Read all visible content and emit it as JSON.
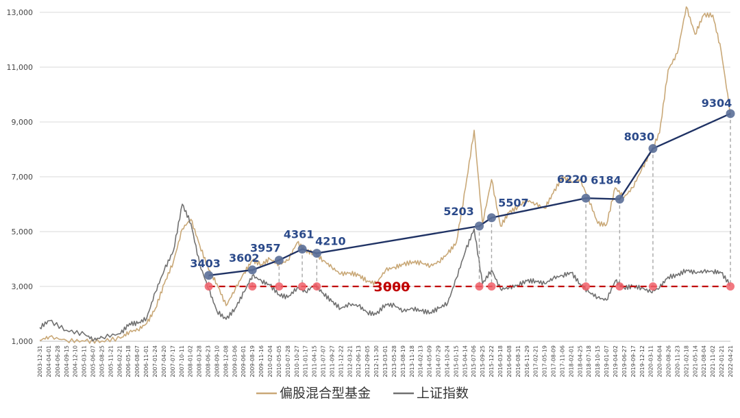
{
  "chart_data": {
    "type": "line",
    "title": "",
    "xlabel": "",
    "ylabel": "",
    "ylim": [
      1000,
      13200
    ],
    "xlim": [
      "2003-12-31",
      "2022-04-21"
    ],
    "y_ticks": [
      1000,
      3000,
      5000,
      7000,
      9000,
      11000,
      13000
    ],
    "y_tick_labels": [
      "1,000",
      "3,000",
      "5,000",
      "7,000",
      "9,000",
      "11,000",
      "13,000"
    ],
    "x_tick_labels": [
      "2003-12-31",
      "2004-04-01",
      "2004-06-28",
      "2004-09-15",
      "2004-12-10",
      "2005-03-11",
      "2005-06-07",
      "2005-08-25",
      "2005-11-21",
      "2006-02-21",
      "2006-05-18",
      "2006-08-07",
      "2006-11-01",
      "2007-01-24",
      "2007-04-20",
      "2007-07-17",
      "2007-10-11",
      "2008-01-02",
      "2008-03-28",
      "2008-06-23",
      "2008-09-10",
      "2008-12-08",
      "2009-03-06",
      "2009-06-01",
      "2009-08-19",
      "2009-11-16",
      "2010-02-04",
      "2010-05-05",
      "2010-07-28",
      "2010-10-27",
      "2011-01-17",
      "2011-04-15",
      "2011-07-07",
      "2011-09-27",
      "2011-12-22",
      "2012-03-21",
      "2012-06-13",
      "2012-09-05",
      "2012-11-30",
      "2013-03-01",
      "2013-05-28",
      "2013-08-19",
      "2013-11-18",
      "2014-02-13",
      "2014-05-09",
      "2014-07-29",
      "2014-10-24",
      "2015-01-15",
      "2015-04-14",
      "2015-07-06",
      "2015-09-25",
      "2015-12-22",
      "2016-03-18",
      "2016-06-08",
      "2016-08-31",
      "2016-11-29",
      "2017-02-21",
      "2017-05-19",
      "2017-08-09",
      "2017-11-06",
      "2018-02-01",
      "2018-04-25",
      "2018-07-18",
      "2018-10-15",
      "2019-01-07",
      "2019-04-02",
      "2019-06-27",
      "2019-09-17",
      "2019-12-12",
      "2020-03-11",
      "2020-06-04",
      "2020-08-26",
      "2020-11-23",
      "2021-02-18",
      "2021-05-14",
      "2021-08-04",
      "2021-11-02",
      "2022-01-21",
      "2022-04-21"
    ],
    "grid": "horizontal",
    "legend_position": "bottom-center",
    "series": [
      {
        "name": "偏股混合型基金",
        "color": "#c9a877",
        "points": [
          [
            "2003-12-31",
            1040
          ],
          [
            "2004-04-01",
            1160
          ],
          [
            "2004-09-15",
            1030
          ],
          [
            "2005-03-11",
            1000
          ],
          [
            "2005-08-25",
            1010
          ],
          [
            "2006-02-21",
            1110
          ],
          [
            "2006-05-18",
            1350
          ],
          [
            "2006-08-07",
            1420
          ],
          [
            "2006-11-01",
            1650
          ],
          [
            "2007-01-24",
            2200
          ],
          [
            "2007-04-20",
            3100
          ],
          [
            "2007-07-17",
            3900
          ],
          [
            "2007-10-11",
            5100
          ],
          [
            "2008-01-02",
            5450
          ],
          [
            "2008-03-28",
            4500
          ],
          [
            "2008-06-23",
            3600
          ],
          [
            "2008-09-10",
            3100
          ],
          [
            "2008-12-08",
            2300
          ],
          [
            "2009-03-06",
            2900
          ],
          [
            "2009-06-01",
            3500
          ],
          [
            "2009-08-19",
            3950
          ],
          [
            "2009-11-16",
            3800
          ],
          [
            "2010-02-04",
            4000
          ],
          [
            "2010-05-05",
            3800
          ],
          [
            "2010-07-28",
            3950
          ],
          [
            "2010-10-27",
            4600
          ],
          [
            "2011-01-17",
            4300
          ],
          [
            "2011-04-15",
            4200
          ],
          [
            "2011-07-07",
            3950
          ],
          [
            "2011-09-27",
            3700
          ],
          [
            "2011-12-22",
            3450
          ],
          [
            "2012-03-21",
            3500
          ],
          [
            "2012-06-13",
            3400
          ],
          [
            "2012-09-05",
            3200
          ],
          [
            "2012-11-30",
            3100
          ],
          [
            "2013-03-01",
            3600
          ],
          [
            "2013-05-28",
            3700
          ],
          [
            "2013-08-19",
            3800
          ],
          [
            "2013-11-18",
            3900
          ],
          [
            "2014-02-13",
            3850
          ],
          [
            "2014-05-09",
            3750
          ],
          [
            "2014-07-29",
            3900
          ],
          [
            "2014-10-24",
            4200
          ],
          [
            "2015-01-15",
            4600
          ],
          [
            "2015-04-14",
            6600
          ],
          [
            "2015-07-06",
            8700
          ],
          [
            "2015-09-25",
            5300
          ],
          [
            "2015-12-22",
            6900
          ],
          [
            "2016-03-18",
            5200
          ],
          [
            "2016-06-08",
            5700
          ],
          [
            "2016-08-31",
            5900
          ],
          [
            "2016-11-29",
            6150
          ],
          [
            "2017-02-21",
            6000
          ],
          [
            "2017-05-19",
            5850
          ],
          [
            "2017-08-09",
            6400
          ],
          [
            "2017-11-06",
            7000
          ],
          [
            "2018-02-01",
            6800
          ],
          [
            "2018-04-25",
            6900
          ],
          [
            "2018-07-18",
            6200
          ],
          [
            "2018-10-15",
            5300
          ],
          [
            "2019-01-07",
            5250
          ],
          [
            "2019-04-02",
            6600
          ],
          [
            "2019-06-27",
            6250
          ],
          [
            "2019-09-17",
            6600
          ],
          [
            "2019-12-12",
            7250
          ],
          [
            "2020-03-11",
            7900
          ],
          [
            "2020-06-04",
            8600
          ],
          [
            "2020-08-26",
            10900
          ],
          [
            "2020-11-23",
            11500
          ],
          [
            "2021-02-18",
            13200
          ],
          [
            "2021-05-14",
            12200
          ],
          [
            "2021-08-04",
            12900
          ],
          [
            "2021-11-02",
            12900
          ],
          [
            "2022-01-21",
            11600
          ],
          [
            "2022-04-21",
            9300
          ]
        ]
      },
      {
        "name": "上证指数",
        "color": "#707070",
        "points": [
          [
            "2003-12-31",
            1500
          ],
          [
            "2004-04-01",
            1750
          ],
          [
            "2004-09-15",
            1400
          ],
          [
            "2005-03-11",
            1250
          ],
          [
            "2005-06-07",
            1050
          ],
          [
            "2005-08-25",
            1150
          ],
          [
            "2006-02-21",
            1280
          ],
          [
            "2006-05-18",
            1650
          ],
          [
            "2006-08-07",
            1650
          ],
          [
            "2006-11-01",
            1850
          ],
          [
            "2007-01-24",
            2800
          ],
          [
            "2007-04-20",
            3600
          ],
          [
            "2007-07-17",
            4300
          ],
          [
            "2007-10-11",
            6000
          ],
          [
            "2008-01-02",
            5300
          ],
          [
            "2008-03-28",
            3800
          ],
          [
            "2008-06-23",
            2900
          ],
          [
            "2008-09-10",
            2100
          ],
          [
            "2008-12-08",
            1800
          ],
          [
            "2009-03-06",
            2200
          ],
          [
            "2009-06-01",
            2800
          ],
          [
            "2009-08-19",
            3400
          ],
          [
            "2009-11-16",
            3200
          ],
          [
            "2010-02-04",
            3050
          ],
          [
            "2010-05-05",
            2700
          ],
          [
            "2010-07-28",
            2600
          ],
          [
            "2010-10-27",
            2950
          ],
          [
            "2011-01-17",
            2800
          ],
          [
            "2011-04-15",
            3050
          ],
          [
            "2011-07-07",
            2750
          ],
          [
            "2011-09-27",
            2450
          ],
          [
            "2011-12-22",
            2200
          ],
          [
            "2012-03-21",
            2350
          ],
          [
            "2012-06-13",
            2300
          ],
          [
            "2012-09-05",
            2050
          ],
          [
            "2012-11-30",
            1980
          ],
          [
            "2013-03-01",
            2350
          ],
          [
            "2013-05-28",
            2300
          ],
          [
            "2013-08-19",
            2100
          ],
          [
            "2013-11-18",
            2200
          ],
          [
            "2014-02-13",
            2100
          ],
          [
            "2014-05-09",
            2050
          ],
          [
            "2014-07-29",
            2200
          ],
          [
            "2014-10-24",
            2400
          ],
          [
            "2015-01-15",
            3300
          ],
          [
            "2015-04-14",
            4300
          ],
          [
            "2015-07-06",
            5100
          ],
          [
            "2015-09-25",
            3100
          ],
          [
            "2015-12-22",
            3600
          ],
          [
            "2016-03-18",
            2900
          ],
          [
            "2016-06-08",
            2950
          ],
          [
            "2016-08-31",
            3050
          ],
          [
            "2016-11-29",
            3200
          ],
          [
            "2017-02-21",
            3200
          ],
          [
            "2017-05-19",
            3100
          ],
          [
            "2017-08-09",
            3300
          ],
          [
            "2017-11-06",
            3400
          ],
          [
            "2018-02-01",
            3500
          ],
          [
            "2018-04-25",
            3100
          ],
          [
            "2018-07-18",
            2800
          ],
          [
            "2018-10-15",
            2600
          ],
          [
            "2019-01-07",
            2500
          ],
          [
            "2019-04-02",
            3200
          ],
          [
            "2019-06-27",
            2950
          ],
          [
            "2019-09-17",
            3000
          ],
          [
            "2019-12-12",
            2950
          ],
          [
            "2020-03-11",
            2800
          ],
          [
            "2020-06-04",
            2950
          ],
          [
            "2020-08-26",
            3350
          ],
          [
            "2020-11-23",
            3400
          ],
          [
            "2021-02-18",
            3600
          ],
          [
            "2021-05-14",
            3500
          ],
          [
            "2021-08-04",
            3550
          ],
          [
            "2021-11-02",
            3550
          ],
          [
            "2022-01-21",
            3500
          ],
          [
            "2022-04-21",
            3050
          ]
        ]
      }
    ],
    "trend_points": [
      {
        "date": "2008-06-23",
        "value": 3403,
        "label": "3403"
      },
      {
        "date": "2009-08-19",
        "value": 3602,
        "label": "3602"
      },
      {
        "date": "2010-05-05",
        "value": 3957,
        "label": "3957"
      },
      {
        "date": "2010-12-15",
        "value": 4361,
        "label": "4361"
      },
      {
        "date": "2011-05-05",
        "value": 4210,
        "label": "4210"
      },
      {
        "date": "2015-08-25",
        "value": 5203,
        "label": "5203"
      },
      {
        "date": "2015-12-22",
        "value": 5507,
        "label": "5507"
      },
      {
        "date": "2018-06-22",
        "value": 6220,
        "label": "6220"
      },
      {
        "date": "2019-05-15",
        "value": 6184,
        "label": "6184"
      },
      {
        "date": "2020-04-01",
        "value": 8030,
        "label": "8030"
      },
      {
        "date": "2022-04-21",
        "value": 9304,
        "label": "9304"
      }
    ],
    "trend_color": "#1f3264",
    "reference_line": {
      "value": 3000,
      "label": "3000",
      "color": "#c00000"
    }
  }
}
